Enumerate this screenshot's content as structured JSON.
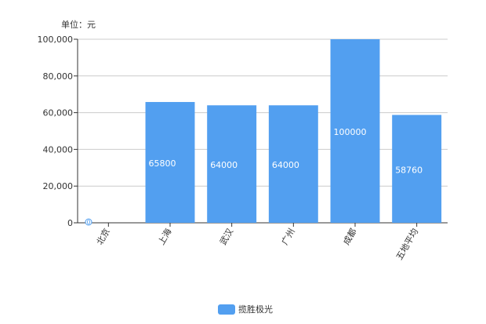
{
  "unit_label": "单位：元",
  "chart_data": {
    "type": "bar",
    "categories": [
      "北京",
      "上海",
      "武汉",
      "广州",
      "成都",
      "五地平均"
    ],
    "series": [
      {
        "name": "揽胜极光",
        "values": [
          0,
          65800,
          64000,
          64000,
          100000,
          58760
        ],
        "color": "#529ff0"
      }
    ],
    "data_labels": [
      "0",
      "65800",
      "64000",
      "64000",
      "100000",
      "58760"
    ],
    "ylim": [
      0,
      100000
    ],
    "yticks": [
      0,
      20000,
      40000,
      60000,
      80000,
      100000
    ],
    "ytick_labels": [
      "0",
      "20,000",
      "40,000",
      "60,000",
      "80,000",
      "100,000"
    ],
    "grid": true,
    "legend_position": "bottom"
  }
}
